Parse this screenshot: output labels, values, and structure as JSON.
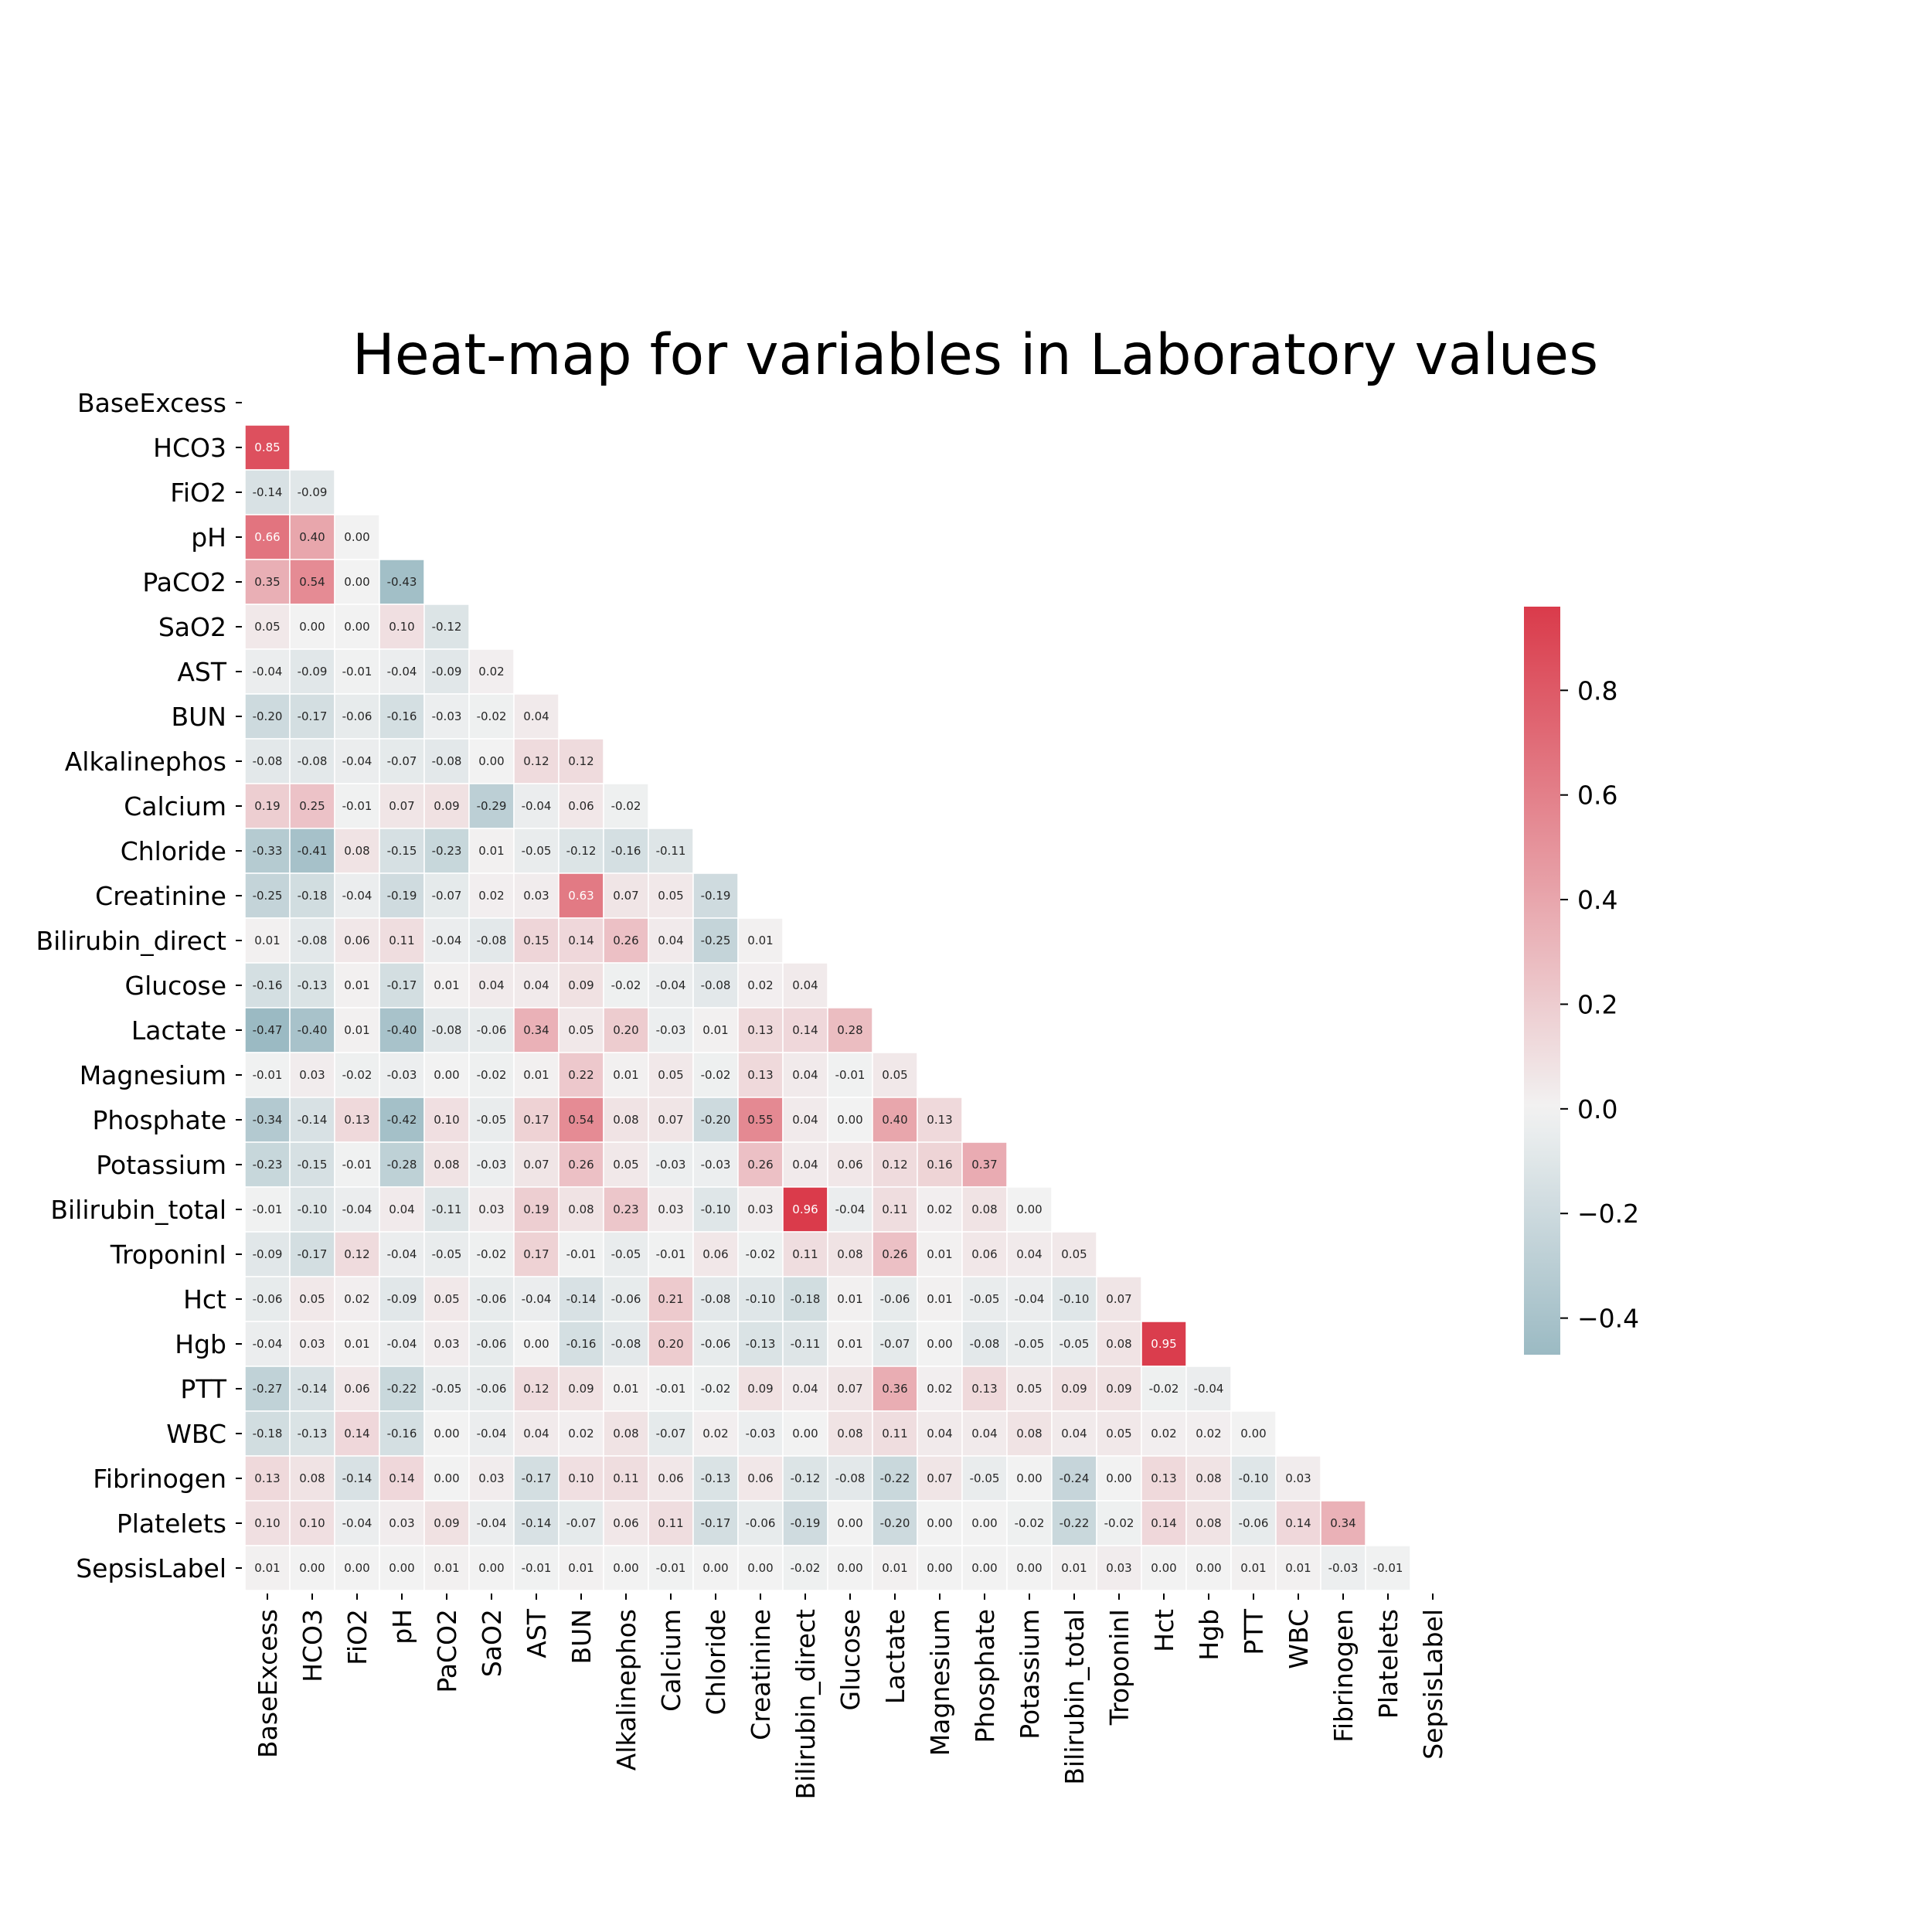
{
  "chart_data": {
    "type": "heatmap",
    "title": "Heat-map for variables in Laboratory values",
    "variables": [
      "BaseExcess",
      "HCO3",
      "FiO2",
      "pH",
      "PaCO2",
      "SaO2",
      "AST",
      "BUN",
      "Alkalinephos",
      "Calcium",
      "Chloride",
      "Creatinine",
      "Bilirubin_direct",
      "Glucose",
      "Lactate",
      "Magnesium",
      "Phosphate",
      "Potassium",
      "Bilirubin_total",
      "TroponinI",
      "Hct",
      "Hgb",
      "PTT",
      "WBC",
      "Fibrinogen",
      "Platelets",
      "SepsisLabel"
    ],
    "matrix": "lower-triangle",
    "values": [
      [],
      [
        0.85
      ],
      [
        -0.14,
        -0.09
      ],
      [
        0.66,
        0.4,
        -0.0
      ],
      [
        0.35,
        0.54,
        -0.0,
        -0.43
      ],
      [
        0.05,
        -0.0,
        0.0,
        0.1,
        -0.12
      ],
      [
        -0.04,
        -0.09,
        -0.01,
        -0.04,
        -0.09,
        0.02
      ],
      [
        -0.2,
        -0.17,
        -0.06,
        -0.16,
        -0.03,
        -0.02,
        0.04
      ],
      [
        -0.08,
        -0.08,
        -0.04,
        -0.07,
        -0.08,
        0.0,
        0.12,
        0.12
      ],
      [
        0.19,
        0.25,
        -0.01,
        0.07,
        0.09,
        -0.29,
        -0.04,
        0.06,
        -0.02
      ],
      [
        -0.33,
        -0.41,
        0.08,
        -0.15,
        -0.23,
        0.01,
        -0.05,
        -0.12,
        -0.16,
        -0.11
      ],
      [
        -0.25,
        -0.18,
        -0.04,
        -0.19,
        -0.07,
        0.02,
        0.03,
        0.63,
        0.07,
        0.05,
        -0.19
      ],
      [
        0.01,
        -0.08,
        0.06,
        0.11,
        -0.04,
        -0.08,
        0.15,
        0.14,
        0.26,
        0.04,
        -0.25,
        0.01
      ],
      [
        -0.16,
        -0.13,
        0.01,
        -0.17,
        0.01,
        0.04,
        0.04,
        0.09,
        -0.02,
        -0.04,
        -0.08,
        0.02,
        0.04
      ],
      [
        -0.47,
        -0.4,
        0.01,
        -0.4,
        -0.08,
        -0.06,
        0.34,
        0.05,
        0.2,
        -0.03,
        0.01,
        0.13,
        0.14,
        0.28
      ],
      [
        -0.01,
        0.03,
        -0.02,
        -0.03,
        0.0,
        -0.02,
        0.01,
        0.22,
        0.01,
        0.05,
        -0.02,
        0.13,
        0.04,
        -0.01,
        0.05
      ],
      [
        -0.34,
        -0.14,
        0.13,
        -0.42,
        0.1,
        -0.05,
        0.17,
        0.54,
        0.08,
        0.07,
        -0.2,
        0.55,
        0.04,
        0.0,
        0.4,
        0.13
      ],
      [
        -0.23,
        -0.15,
        -0.01,
        -0.28,
        0.08,
        -0.03,
        0.07,
        0.26,
        0.05,
        -0.03,
        -0.03,
        0.26,
        0.04,
        0.06,
        0.12,
        0.16,
        0.37
      ],
      [
        -0.01,
        -0.1,
        -0.04,
        0.04,
        -0.11,
        0.03,
        0.19,
        0.08,
        0.23,
        0.03,
        -0.1,
        0.03,
        0.96,
        -0.04,
        0.11,
        0.02,
        0.08,
        0.0
      ],
      [
        -0.09,
        -0.17,
        0.12,
        -0.04,
        -0.05,
        -0.02,
        0.17,
        -0.01,
        -0.05,
        -0.01,
        0.06,
        -0.02,
        0.11,
        0.08,
        0.26,
        0.01,
        0.06,
        0.04,
        0.05
      ],
      [
        -0.06,
        0.05,
        0.02,
        -0.09,
        0.05,
        -0.06,
        -0.04,
        -0.14,
        -0.06,
        0.21,
        -0.08,
        -0.1,
        -0.18,
        0.01,
        -0.06,
        0.01,
        -0.05,
        -0.04,
        -0.1,
        0.07
      ],
      [
        -0.04,
        0.03,
        0.01,
        -0.04,
        0.03,
        -0.06,
        -0.0,
        -0.16,
        -0.08,
        0.2,
        -0.06,
        -0.13,
        -0.11,
        0.01,
        -0.07,
        -0.0,
        -0.08,
        -0.05,
        -0.05,
        0.08,
        0.95
      ],
      [
        -0.27,
        -0.14,
        0.06,
        -0.22,
        -0.05,
        -0.06,
        0.12,
        0.09,
        0.01,
        -0.01,
        -0.02,
        0.09,
        0.04,
        0.07,
        0.36,
        0.02,
        0.13,
        0.05,
        0.09,
        0.09,
        -0.02,
        -0.04
      ],
      [
        -0.18,
        -0.13,
        0.14,
        -0.16,
        -0.0,
        -0.04,
        0.04,
        0.02,
        0.08,
        -0.07,
        0.02,
        -0.03,
        0.0,
        0.08,
        0.11,
        0.04,
        0.04,
        0.08,
        0.04,
        0.05,
        0.02,
        0.02,
        0.0
      ],
      [
        0.13,
        0.08,
        -0.14,
        0.14,
        0.0,
        0.03,
        -0.17,
        0.1,
        0.11,
        0.06,
        -0.13,
        0.06,
        -0.12,
        -0.08,
        -0.22,
        0.07,
        -0.05,
        0.0,
        -0.24,
        0.0,
        0.13,
        0.08,
        -0.1,
        0.03
      ],
      [
        0.1,
        0.1,
        -0.04,
        0.03,
        0.09,
        -0.04,
        -0.14,
        -0.07,
        0.06,
        0.11,
        -0.17,
        -0.06,
        -0.19,
        -0.0,
        -0.2,
        0.0,
        0.0,
        -0.02,
        -0.22,
        -0.02,
        0.14,
        0.08,
        -0.06,
        0.14,
        0.34
      ],
      [
        0.01,
        -0.0,
        -0.0,
        0.0,
        0.01,
        0.0,
        -0.01,
        0.01,
        -0.0,
        -0.01,
        0.0,
        0.0,
        -0.02,
        0.0,
        0.01,
        0.0,
        -0.0,
        0.0,
        0.01,
        0.03,
        -0.0,
        0.0,
        0.01,
        0.01,
        -0.03,
        -0.01
      ]
    ],
    "colorbar": {
      "min": -0.47,
      "max": 0.96,
      "ticks": [
        -0.4,
        -0.2,
        0.0,
        0.2,
        0.4,
        0.6,
        0.8
      ],
      "tick_labels": [
        "−0.4",
        "−0.2",
        "0.0",
        "0.2",
        "0.4",
        "0.6",
        "0.8"
      ],
      "colors": {
        "negative": "#9bbac3",
        "center": "#f2f2f2",
        "positive": "#da3b4b"
      }
    },
    "grid": "white cell borders",
    "legend": "colorbar-right"
  }
}
